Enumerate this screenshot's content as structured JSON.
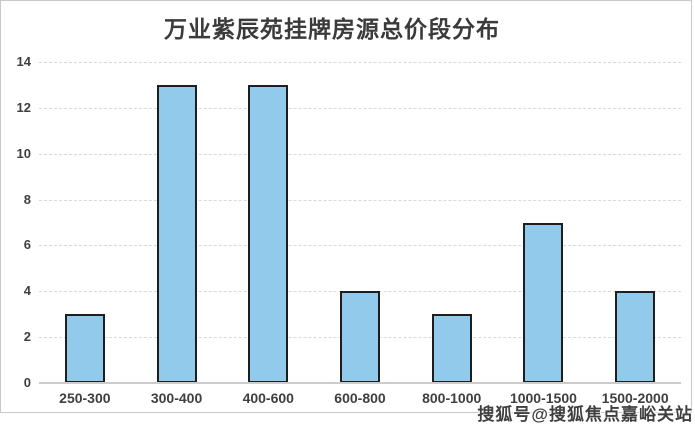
{
  "window": {
    "background": "#ffffff",
    "card_border_color": "#c8c8c8"
  },
  "chart_data": {
    "type": "bar",
    "title": "万业紫辰苑挂牌房源总价段分布",
    "categories": [
      "250-300",
      "300-400",
      "400-600",
      "600-800",
      "800-1000",
      "1000-1500",
      "1500-2000"
    ],
    "values": [
      3,
      13,
      13,
      4,
      3,
      7,
      4
    ],
    "xlabel": "",
    "ylabel": "",
    "ylim": [
      0,
      14
    ],
    "y_ticks": [
      0,
      2,
      4,
      6,
      8,
      10,
      12,
      14
    ],
    "grid": "horizontal-dashed",
    "legend": "none",
    "colors": {
      "bar_fill": "#92CAEB",
      "bar_border": "#1e1e1e",
      "title_text": "#3b3b3b",
      "tick_text": "#3f3f3f",
      "gridline": "#d9d9d9",
      "axis_line": "#cccccc"
    }
  },
  "watermark": {
    "text": "搜狐号@搜狐焦点嘉峪关站"
  }
}
